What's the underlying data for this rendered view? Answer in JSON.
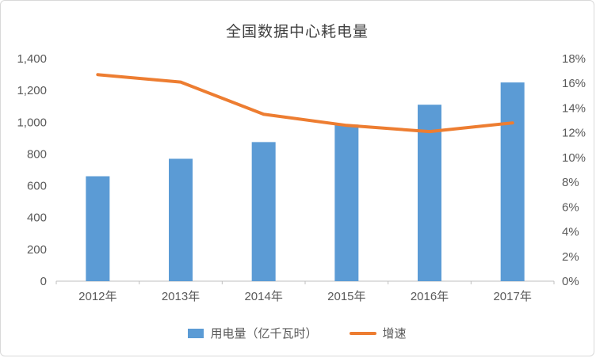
{
  "chart_data": {
    "type": "bar",
    "subtype": "bar-line-combo",
    "title": "全国数据中心耗电量",
    "categories": [
      "2012年",
      "2013年",
      "2014年",
      "2015年",
      "2016年",
      "2017年"
    ],
    "series": [
      {
        "name": "用电量（亿千瓦时）",
        "type": "bar",
        "axis": "left",
        "color": "#5B9BD5",
        "values": [
          660,
          770,
          875,
          985,
          1110,
          1250
        ]
      },
      {
        "name": "增速",
        "type": "line",
        "axis": "right",
        "color": "#ED7D31",
        "values": [
          16.7,
          16.1,
          13.5,
          12.6,
          12.1,
          12.8
        ]
      }
    ],
    "left_axis": {
      "min": 0,
      "max": 1400,
      "step": 200,
      "tick_labels": [
        "0",
        "200",
        "400",
        "600",
        "800",
        "1,000",
        "1,200",
        "1,400"
      ]
    },
    "right_axis": {
      "min": 0,
      "max": 18,
      "step": 2,
      "tick_labels": [
        "0%",
        "2%",
        "4%",
        "6%",
        "8%",
        "10%",
        "12%",
        "14%",
        "16%",
        "18%"
      ]
    },
    "grid": false,
    "legend_position": "bottom",
    "colors": {
      "axis_line": "#bfbfbf",
      "tick_text": "#595959",
      "title_text": "#404040"
    }
  }
}
